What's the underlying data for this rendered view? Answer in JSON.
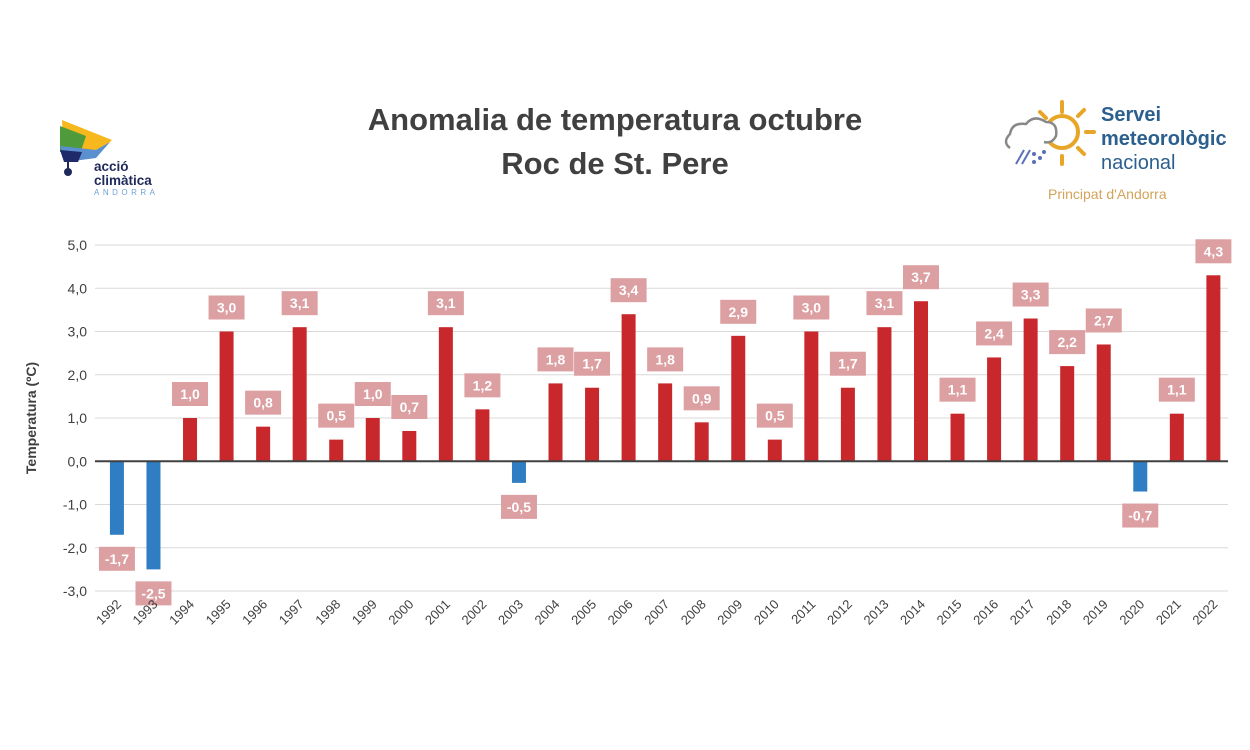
{
  "header": {
    "left_logo": {
      "line1": "acció",
      "line2": "climàtica",
      "line3": "ANDORRA"
    },
    "right_logo": {
      "line1": "Servei",
      "line2": "meteorològic",
      "line3": "nacional",
      "line4": "Principat d'Andorra"
    }
  },
  "chart_data": {
    "type": "bar",
    "title": "Anomalia de temperatura octubre",
    "subtitle": "Roc de St. Pere",
    "xlabel": "",
    "ylabel": "Temperatura (ºC)",
    "ylim": [
      -3.0,
      5.0
    ],
    "yticks": [
      "5,0",
      "4,0",
      "3,0",
      "2,0",
      "1,0",
      "0,0",
      "-1,0",
      "-2,0",
      "-3,0"
    ],
    "ytick_values": [
      5,
      4,
      3,
      2,
      1,
      0,
      -1,
      -2,
      -3
    ],
    "grid": true,
    "categories": [
      "1992",
      "1993",
      "1994",
      "1995",
      "1996",
      "1997",
      "1998",
      "1999",
      "2000",
      "2001",
      "2002",
      "2003",
      "2004",
      "2005",
      "2006",
      "2007",
      "2008",
      "2009",
      "2010",
      "2011",
      "2012",
      "2013",
      "2014",
      "2015",
      "2016",
      "2017",
      "2018",
      "2019",
      "2020",
      "2021",
      "2022"
    ],
    "values": [
      -1.7,
      -2.5,
      1.0,
      3.0,
      0.8,
      3.1,
      0.5,
      1.0,
      0.7,
      3.1,
      1.2,
      -0.5,
      1.8,
      1.7,
      3.4,
      1.8,
      0.9,
      2.9,
      0.5,
      3.0,
      1.7,
      3.1,
      3.7,
      1.1,
      2.4,
      3.3,
      2.2,
      2.7,
      -0.7,
      1.1,
      4.3
    ],
    "data_labels": [
      "-1,7",
      "-2,5",
      "1,0",
      "3,0",
      "0,8",
      "3,1",
      "0,5",
      "1,0",
      "0,7",
      "3,1",
      "1,2",
      "-0,5",
      "1,8",
      "1,7",
      "3,4",
      "1,8",
      "0,9",
      "2,9",
      "0,5",
      "3,0",
      "1,7",
      "3,1",
      "3,7",
      "1,1",
      "2,4",
      "3,3",
      "2,2",
      "2,7",
      "-0,7",
      "1,1",
      "4,3"
    ],
    "colors": {
      "positive": "#c8282b",
      "negative": "#2f7dc3",
      "label_bg": "#dc9fa2",
      "label_text": "#ffffff",
      "grid": "#d9d9d9"
    }
  }
}
